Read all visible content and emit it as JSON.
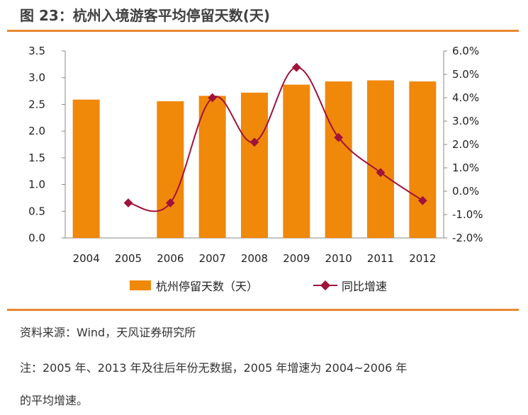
{
  "title": "图 23：杭州入境游客平均停留天数(天)",
  "source": "资料来源：Wind，天风证券研究所",
  "note_line1": "注：2005 年、2013 年及往后年份无数据，2005 年增速为 2004~2006 年",
  "note_line2": "的平均增速。",
  "colors": {
    "bar": "#f0880a",
    "line": "#a0123a",
    "rule": "#e8892e"
  },
  "chart_data": {
    "type": "bar+line",
    "categories": [
      "2004",
      "2005",
      "2006",
      "2007",
      "2008",
      "2009",
      "2010",
      "2011",
      "2012"
    ],
    "series": [
      {
        "name": "杭州停留天数（天）",
        "type": "bar",
        "axis": "left",
        "values": [
          2.59,
          null,
          2.56,
          2.66,
          2.72,
          2.87,
          2.93,
          2.95,
          2.93
        ]
      },
      {
        "name": "同比增速",
        "type": "line",
        "axis": "right",
        "values": [
          null,
          -0.5,
          -0.5,
          4.0,
          2.1,
          5.3,
          2.3,
          0.8,
          -0.4
        ]
      }
    ],
    "y_left": {
      "min": 0,
      "max": 3.5,
      "ticks": [
        "0.0",
        "0.5",
        "1.0",
        "1.5",
        "2.0",
        "2.5",
        "3.0",
        "3.5"
      ]
    },
    "y_right": {
      "min": -2,
      "max": 6,
      "ticks": [
        "-2.0%",
        "-1.0%",
        "0.0%",
        "1.0%",
        "2.0%",
        "3.0%",
        "4.0%",
        "5.0%",
        "6.0%"
      ]
    },
    "legend": [
      "杭州停留天数（天）",
      "同比增速"
    ]
  }
}
